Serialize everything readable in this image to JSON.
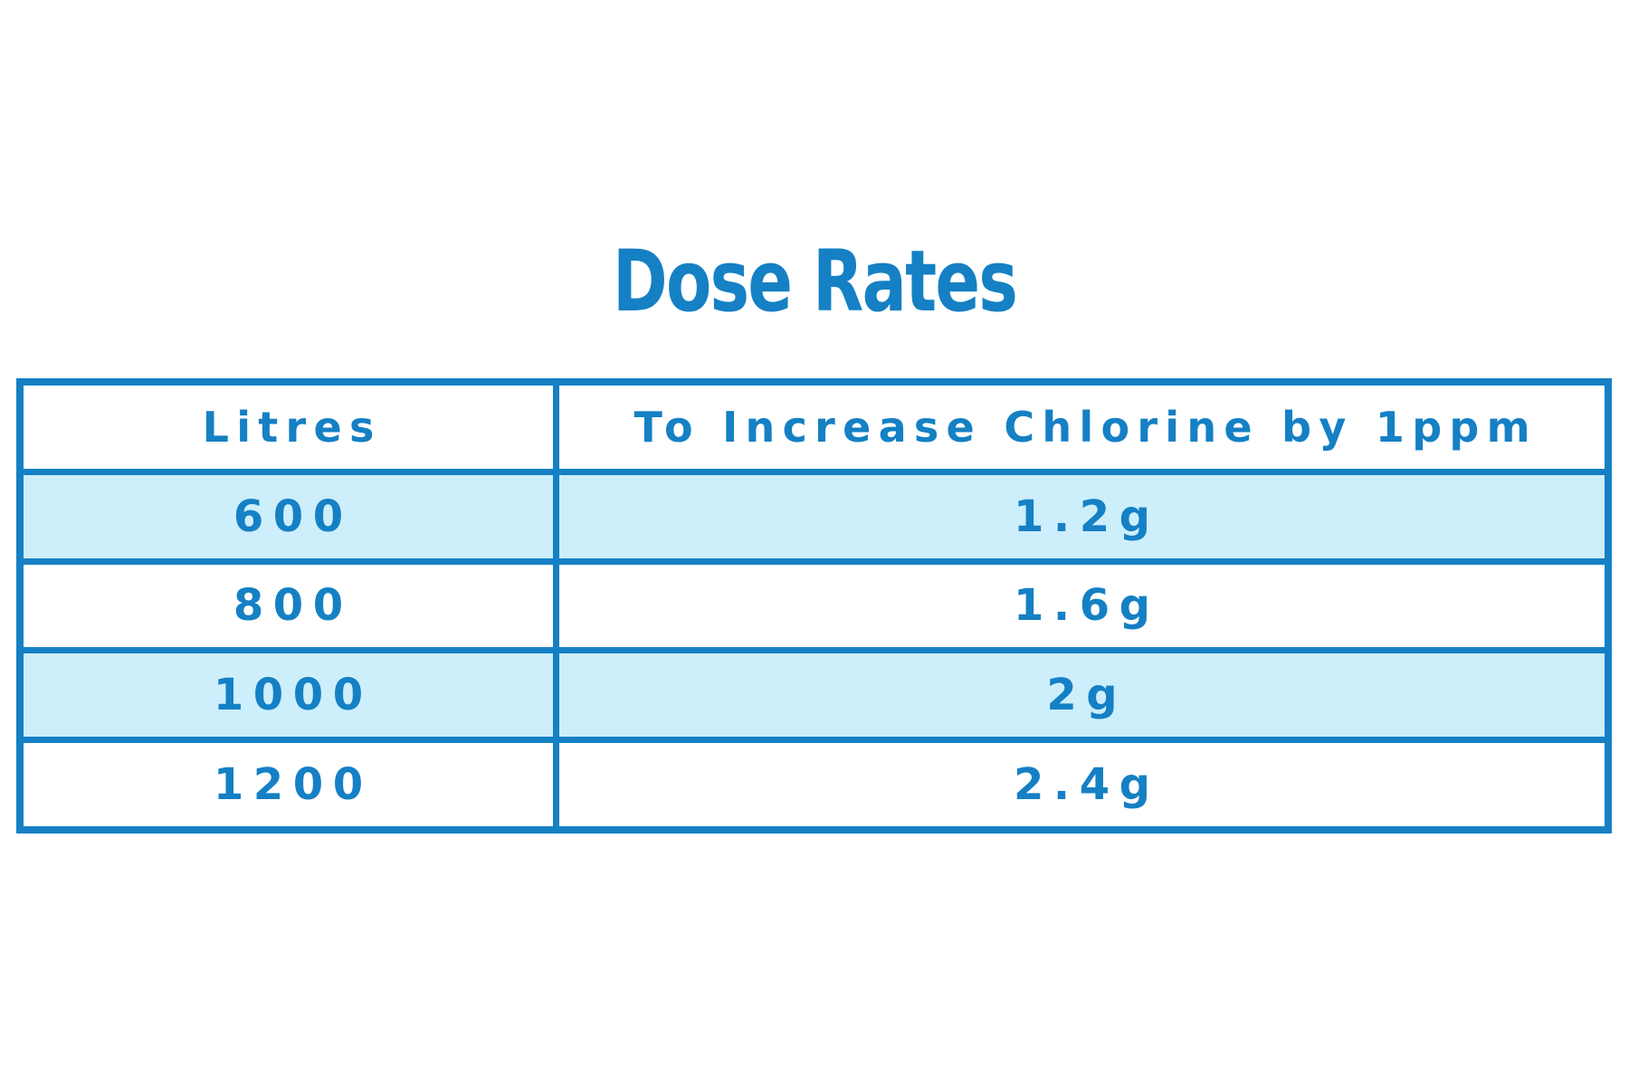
{
  "title": "Dose Rates",
  "colors": {
    "accent_blue": "#1580c4",
    "row_shade_blue": "#cdeefb",
    "background": "#ffffff"
  },
  "table": {
    "headers": [
      "Litres",
      "To Increase Chlorine by 1ppm"
    ],
    "rows": [
      {
        "litres": "600",
        "dose": "1.2g"
      },
      {
        "litres": "800",
        "dose": "1.6g"
      },
      {
        "litres": "1000",
        "dose": "2g"
      },
      {
        "litres": "1200",
        "dose": "2.4g"
      }
    ]
  },
  "chart_data": {
    "type": "table",
    "title": "Dose Rates",
    "columns": [
      "Litres",
      "To Increase Chlorine by 1ppm"
    ],
    "rows": [
      [
        "600",
        "1.2g"
      ],
      [
        "800",
        "1.6g"
      ],
      [
        "1000",
        "2g"
      ],
      [
        "1200",
        "2.4g"
      ]
    ],
    "notes": "Alternating row shading (rows 600 and 1000 shaded light blue); all text and borders in brand blue"
  }
}
